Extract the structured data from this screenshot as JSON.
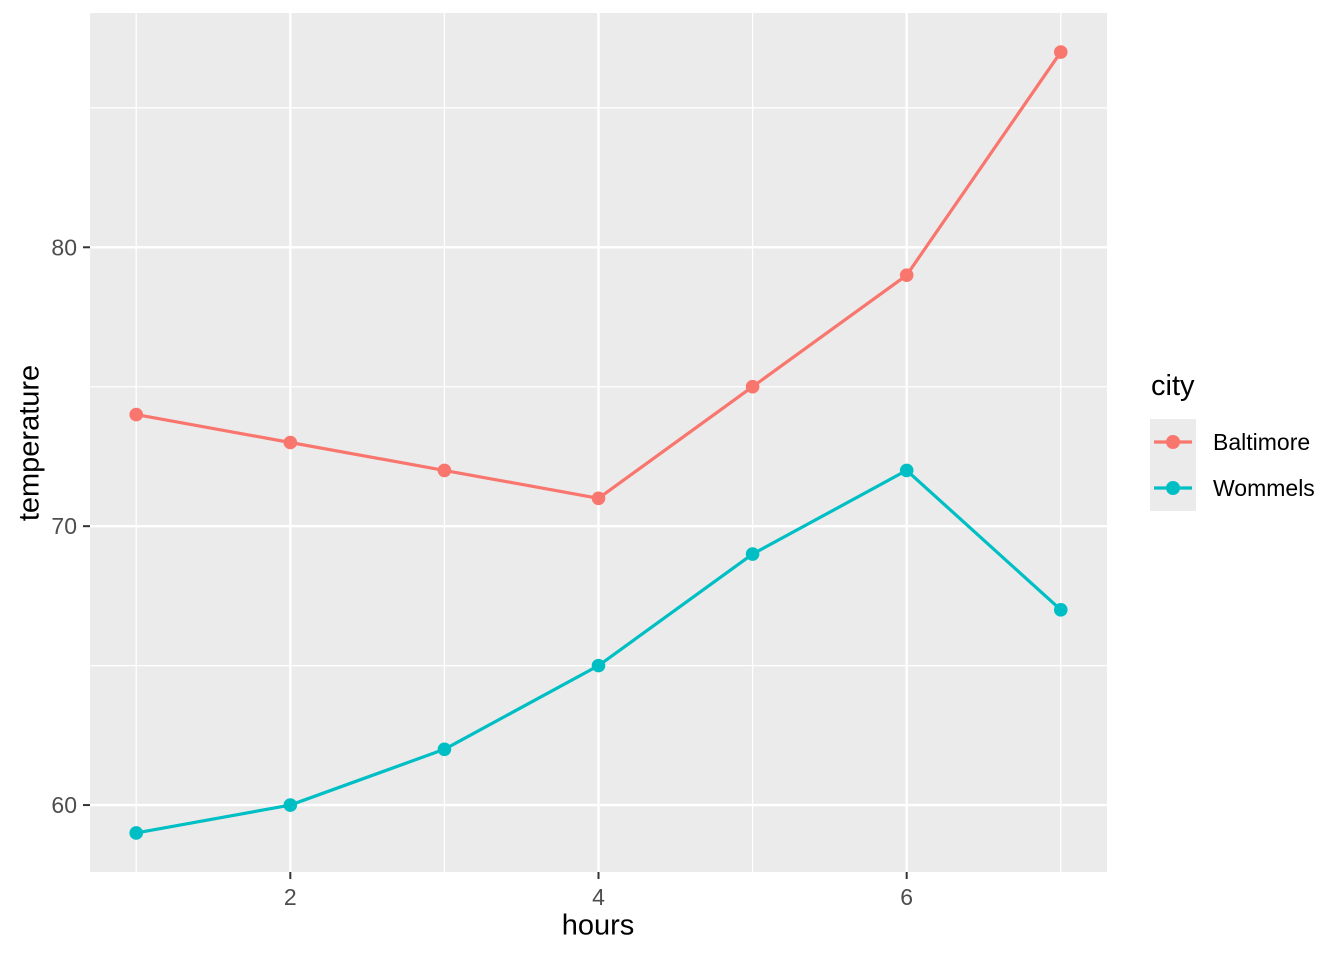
{
  "chart_data": {
    "type": "line",
    "title": "",
    "xlabel": "hours",
    "ylabel": "temperature",
    "legend_title": "city",
    "legend_position": "right",
    "x": [
      1,
      2,
      3,
      4,
      5,
      6,
      7
    ],
    "series": [
      {
        "name": "Baltimore",
        "color": "#F8766D",
        "values": [
          74,
          73,
          72,
          71,
          75,
          79,
          87
        ]
      },
      {
        "name": "Wommels",
        "color": "#00BFC4",
        "values": [
          59,
          60,
          62,
          65,
          69,
          72,
          67
        ]
      }
    ],
    "xlim": [
      0.7,
      7.3
    ],
    "ylim": [
      57.6,
      88.4
    ],
    "x_ticks": [
      2,
      4,
      6
    ],
    "y_ticks": [
      60,
      70,
      80
    ],
    "x_minor_ticks": [
      1,
      3,
      5,
      7
    ],
    "y_minor_ticks": [
      65,
      75,
      85
    ],
    "grid": true,
    "panel_background": "#EBEBEB",
    "grid_color": "#FFFFFF",
    "tick_label_color": "#4D4D4D",
    "tick_mark_color": "#333333",
    "axis_title_color": "#000000",
    "legend_key_background": "#EBEBEB"
  }
}
